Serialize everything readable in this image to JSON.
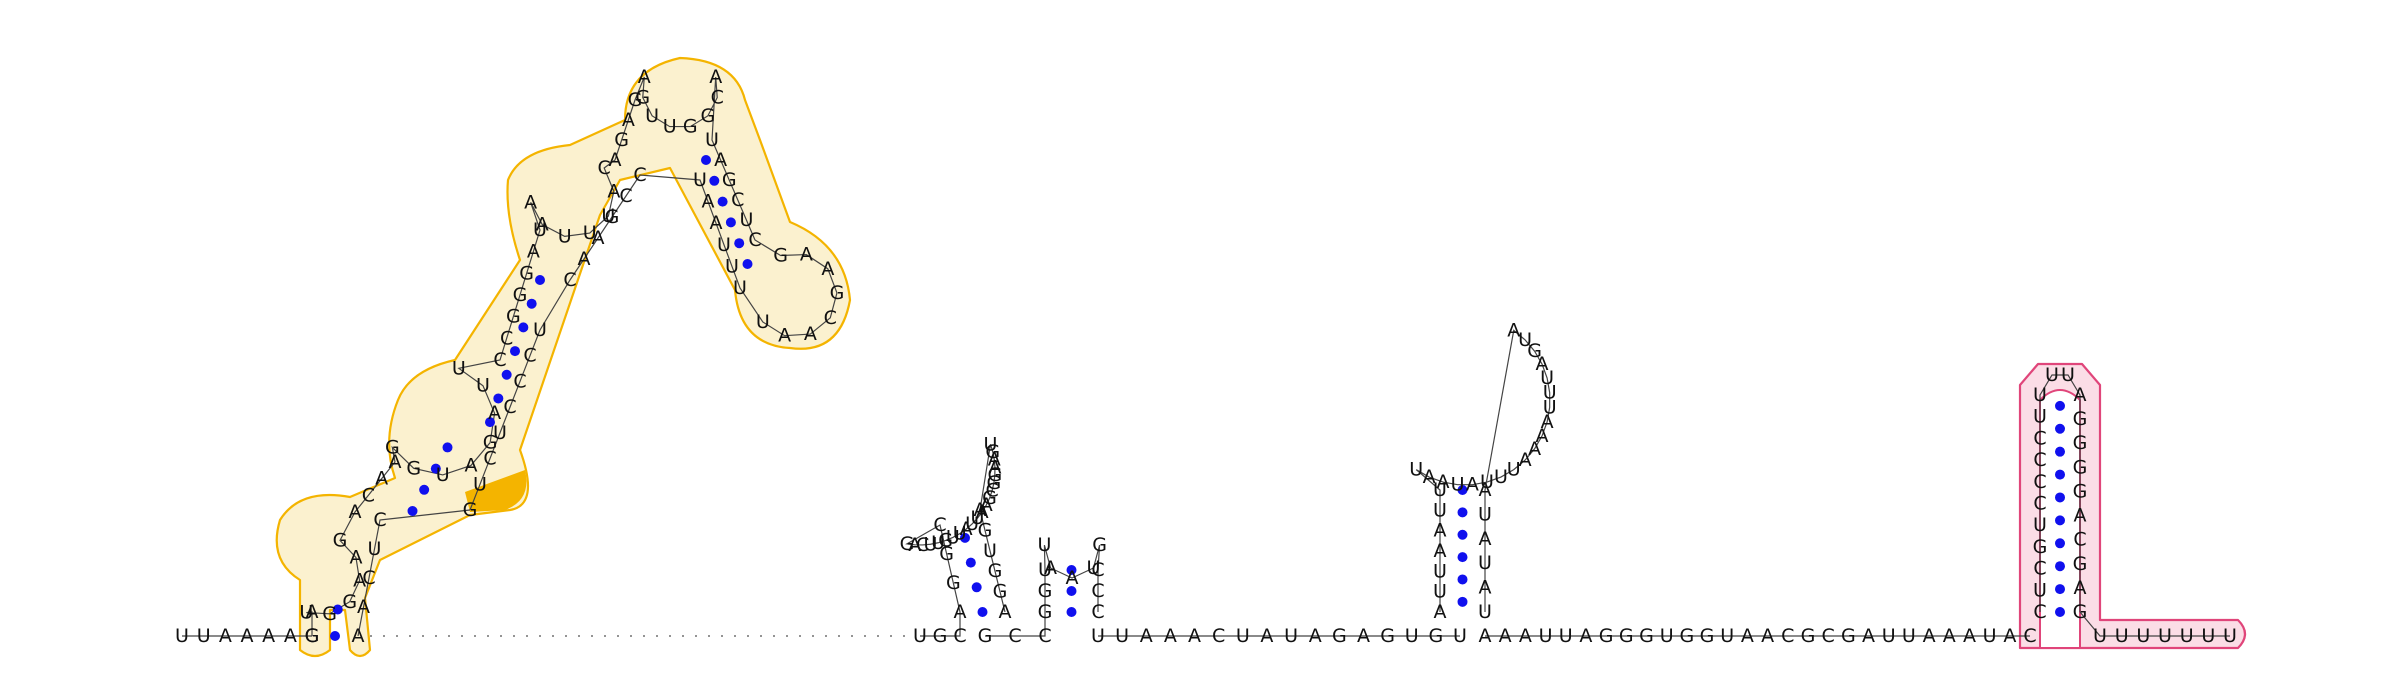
{
  "diagram": {
    "type": "rna-secondary-structure",
    "sequence_5prime_tail": "UUAAAAG",
    "domain1": {
      "highlight_color": "#f4b400",
      "strand_up": "GAUGGAAGACAAGGUAGAUUCCGGGAUAAUUUACAGAGAGUUGGCAUAGCUCGAAGCAAUUUUAAUCCGAACUCCCUCUG",
      "marked_bases": "ACUA"
    },
    "domain2": {
      "stem1_loop": "GACUUGUUAUUAAGCGGAAGU",
      "stem2_loop": "GGUAAUCCC"
    },
    "linker1": "UUAAACUAUAGAGUGU",
    "domain3_hairpin": {
      "stem_5prime": "AUUAAUU",
      "loop": "UAAUAUUUAAAAUUUAGUA",
      "stem_3prime": "AUAUAU"
    },
    "linker2": "AAAUUAGGGUGGUAACGCGAUUAAAUAC",
    "terminator": {
      "highlight_color": "#e0457a",
      "stem_5prime": "CUCGUCCCCUU",
      "loop": "UU",
      "stem_3prime": "AGGGGACGAG",
      "tail": "UUUUUUU"
    },
    "pair_color": "#1010ee"
  }
}
